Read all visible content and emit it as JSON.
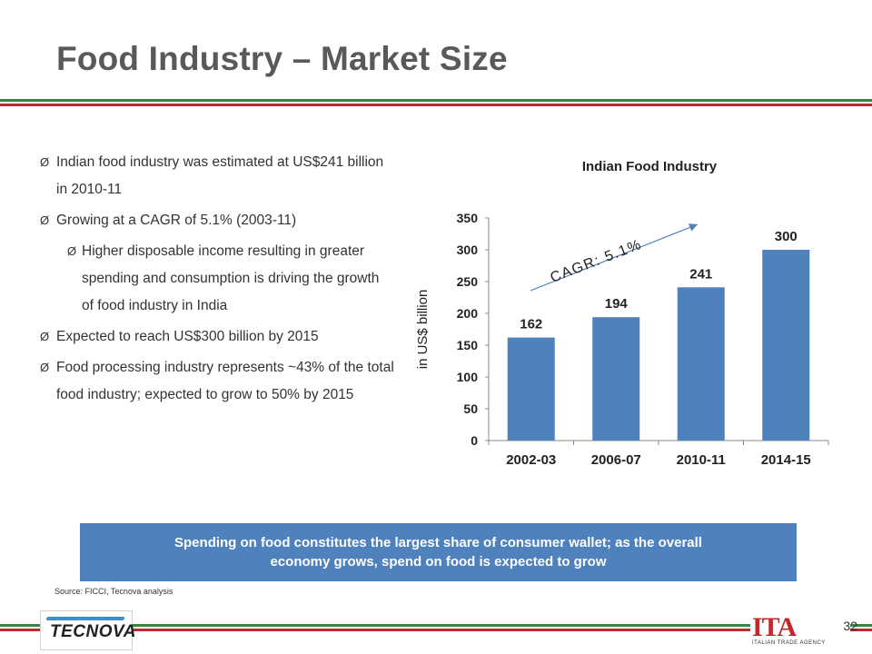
{
  "slide": {
    "title": "Food Industry – Market Size",
    "page_number": "32",
    "source": "Source: FICCI, Tecnova analysis",
    "callout_line1": "Spending on food constitutes the largest share of consumer wallet; as the overall",
    "callout_line2": "economy grows, spend on food is expected to grow",
    "logo_left": "TECNOVA",
    "logo_right": "ITA",
    "logo_right_sub": "ITALIAN TRADE AGENCY"
  },
  "bullets": [
    {
      "level": 1,
      "text": "Indian food industry was estimated at US$241 billion in 2010-11"
    },
    {
      "level": 1,
      "text": "Growing at a CAGR of 5.1% (2003-11)"
    },
    {
      "level": 2,
      "text": "Higher disposable income resulting in greater spending and consumption is driving the growth of food industry in India"
    },
    {
      "level": 1,
      "text": "Expected to reach US$300 billion by 2015"
    },
    {
      "level": 1,
      "text": "Food processing industry represents ~43% of the total food industry; expected to grow to 50% by 2015"
    }
  ],
  "bullet_marker": "Ø",
  "colors": {
    "bar": "#4f81bd",
    "title": "#595959",
    "stripe_green": "#2e8b3a",
    "stripe_red": "#c0282c"
  },
  "chart_data": {
    "type": "bar",
    "title": "Indian Food Industry",
    "categories": [
      "2002-03",
      "2006-07",
      "2010-11",
      "2014-15"
    ],
    "values": [
      162,
      194,
      241,
      300
    ],
    "ylabel": "in US$ billion",
    "ylim": [
      0,
      350
    ],
    "yticks": [
      0,
      50,
      100,
      150,
      200,
      250,
      300,
      350
    ],
    "annotation": "CAGR: 5.1%",
    "grid": false,
    "legend": "none"
  }
}
